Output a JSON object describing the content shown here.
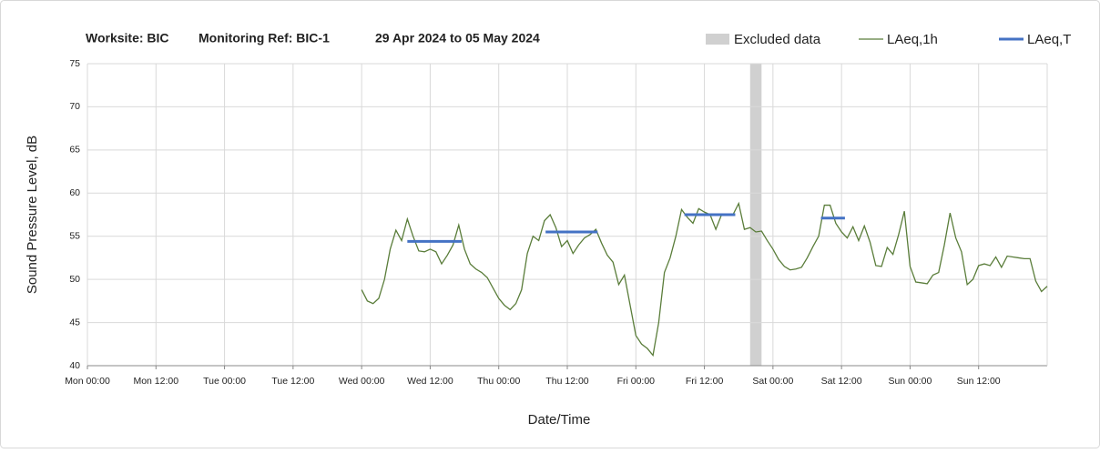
{
  "chart_data": {
    "type": "line",
    "title_parts": [
      "Worksite: BIC",
      "Monitoring Ref: BIC-1",
      "29 Apr 2024 to 05 May 2024"
    ],
    "xlabel": "Date/Time",
    "ylabel": "Sound Pressure Level, dB",
    "xlim": [
      0,
      168
    ],
    "ylim": [
      40,
      75
    ],
    "xticks": [
      {
        "value": 0,
        "label": "Mon 00:00"
      },
      {
        "value": 12,
        "label": "Mon 12:00"
      },
      {
        "value": 24,
        "label": "Tue 00:00"
      },
      {
        "value": 36,
        "label": "Tue 12:00"
      },
      {
        "value": 48,
        "label": "Wed 00:00"
      },
      {
        "value": 60,
        "label": "Wed 12:00"
      },
      {
        "value": 72,
        "label": "Thu 00:00"
      },
      {
        "value": 84,
        "label": "Thu 12:00"
      },
      {
        "value": 96,
        "label": "Fri 00:00"
      },
      {
        "value": 108,
        "label": "Fri 12:00"
      },
      {
        "value": 120,
        "label": "Sat 00:00"
      },
      {
        "value": 132,
        "label": "Sat 12:00"
      },
      {
        "value": 144,
        "label": "Sun 00:00"
      },
      {
        "value": 156,
        "label": "Sun 12:00"
      }
    ],
    "yticks": [
      40,
      45,
      50,
      55,
      60,
      65,
      70,
      75
    ],
    "grid": true,
    "legend": "top-right",
    "excluded": {
      "name": "Excluded data",
      "color": "#d0d0d0",
      "ranges": [
        [
          116,
          118
        ]
      ]
    },
    "x": [
      48,
      49,
      50,
      51,
      52,
      53,
      54,
      55,
      56,
      57,
      58,
      59,
      60,
      61,
      62,
      63,
      64,
      65,
      66,
      67,
      68,
      69,
      70,
      71,
      72,
      73,
      74,
      75,
      76,
      77,
      78,
      79,
      80,
      81,
      82,
      83,
      84,
      85,
      86,
      87,
      88,
      89,
      90,
      91,
      92,
      93,
      94,
      95,
      96,
      97,
      98,
      99,
      100,
      101,
      102,
      103,
      104,
      105,
      106,
      107,
      108,
      109,
      110,
      111,
      112,
      113,
      114,
      115,
      116,
      117,
      118,
      119,
      120,
      121,
      122,
      123,
      124,
      125,
      126,
      127,
      128,
      129,
      130,
      131,
      132,
      133,
      134,
      135,
      136,
      137,
      138,
      139,
      140,
      141,
      142,
      143,
      144,
      145,
      146,
      147,
      148,
      149,
      150,
      151,
      152,
      153,
      154,
      155,
      156,
      157,
      158,
      159,
      160,
      161,
      162,
      163,
      164,
      165,
      166,
      167,
      168
    ],
    "series": [
      {
        "name": "LAeq,1h",
        "color": "#5a7d3a",
        "values": [
          48.8,
          47.5,
          47.2,
          47.8,
          50,
          53.5,
          55.7,
          54.5,
          57,
          55,
          53.3,
          53.2,
          53.5,
          53.2,
          51.8,
          52.8,
          54,
          56.3,
          53.5,
          51.8,
          51.2,
          50.8,
          50.2,
          49,
          47.8,
          47,
          46.5,
          47.2,
          48.8,
          53,
          55,
          54.5,
          56.8,
          57.5,
          56,
          53.8,
          54.5,
          53,
          54,
          54.8,
          55.2,
          55.8,
          54.2,
          52.8,
          52,
          49.4,
          50.5,
          47,
          43.5,
          42.5,
          42,
          41.2,
          45,
          50.8,
          52.5,
          55,
          58.1,
          57.2,
          56.5,
          58.2,
          57.8,
          57.5,
          55.8,
          57.5,
          57.5,
          57.5,
          58.8,
          55.8,
          56,
          55.5,
          55.6,
          54.5,
          53.5,
          52.3,
          51.5,
          51.1,
          51.2,
          51.4,
          52.5,
          53.8,
          55,
          58.6,
          58.6,
          56.5,
          55.5,
          54.8,
          56.1,
          54.5,
          56.2,
          54.3,
          51.6,
          51.5,
          53.7,
          52.9,
          55.2,
          57.9,
          51.5,
          49.7,
          49.6,
          49.5,
          50.5,
          50.8,
          54,
          57.7,
          54.8,
          53.2,
          49.4,
          50,
          51.6,
          51.8,
          51.6,
          52.6,
          51.4,
          52.7,
          52.6,
          52.5,
          52.4,
          52.4,
          49.8,
          48.6,
          49.2
        ]
      },
      {
        "name": "LAeq,T",
        "color": "#4472c4",
        "segments": [
          {
            "start": 56,
            "end": 65.5,
            "value": 54.4
          },
          {
            "start": 80.2,
            "end": 89.3,
            "value": 55.5
          },
          {
            "start": 104.5,
            "end": 113.4,
            "value": 57.5
          },
          {
            "start": 128.4,
            "end": 132.6,
            "value": 57.1
          }
        ]
      }
    ]
  }
}
